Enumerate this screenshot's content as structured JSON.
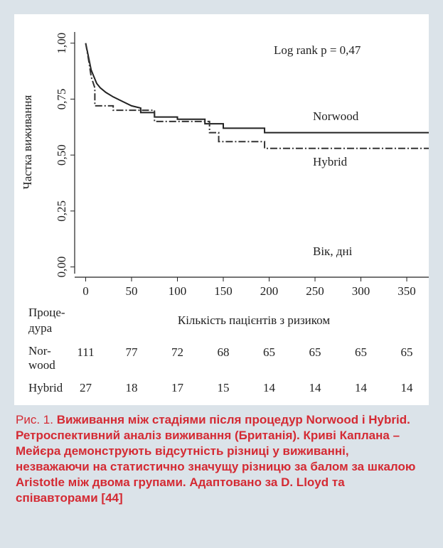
{
  "chart_data": {
    "type": "line",
    "annotation": "Log rank p = 0,47",
    "x_label": "Вік, дні",
    "y_label": "Частка виживання",
    "xlim": [
      -12,
      374
    ],
    "ylim": [
      -0.03,
      1.05
    ],
    "xticks": [
      0,
      50,
      100,
      150,
      200,
      250,
      300,
      350
    ],
    "yticks": [
      {
        "value": 0,
        "label": "0,00"
      },
      {
        "value": 0.25,
        "label": "0,25"
      },
      {
        "value": 0.5,
        "label": "0,50"
      },
      {
        "value": 0.75,
        "label": "0,75"
      },
      {
        "value": 1,
        "label": "1,00"
      }
    ],
    "series": [
      {
        "name": "Norwood",
        "color": "#222222",
        "dash": "none",
        "x": [
          0,
          2,
          4,
          6,
          9,
          12,
          16,
          22,
          30,
          40,
          50,
          60,
          60,
          75,
          75,
          100,
          100,
          130,
          130,
          150,
          150,
          195,
          195,
          374
        ],
        "values": [
          1,
          0.96,
          0.92,
          0.88,
          0.85,
          0.82,
          0.8,
          0.78,
          0.76,
          0.74,
          0.72,
          0.71,
          0.69,
          0.69,
          0.67,
          0.67,
          0.66,
          0.66,
          0.64,
          0.64,
          0.62,
          0.62,
          0.6,
          0.6
        ]
      },
      {
        "name": "Hybrid",
        "color": "#333333",
        "dash": "10 3 2 3",
        "x": [
          0,
          3,
          6,
          10,
          10,
          30,
          30,
          75,
          75,
          135,
          135,
          145,
          145,
          195,
          195,
          374
        ],
        "values": [
          1,
          0.93,
          0.85,
          0.8,
          0.72,
          0.72,
          0.7,
          0.7,
          0.65,
          0.65,
          0.6,
          0.6,
          0.56,
          0.56,
          0.53,
          0.53
        ]
      }
    ],
    "risk_table": {
      "header": [
        "Проце-",
        "дура"
      ],
      "title": "Кількість пацієнтів з ризиком",
      "rows": [
        {
          "label": [
            "Nor-",
            "wood"
          ],
          "values": [
            111,
            77,
            72,
            68,
            65,
            65,
            65,
            65
          ]
        },
        {
          "label": [
            "Hybrid"
          ],
          "values": [
            27,
            18,
            17,
            15,
            14,
            14,
            14,
            14
          ]
        }
      ]
    }
  },
  "caption": {
    "prefix": "Рис. 1.",
    "text": "Виживання між стадіями після процедур Norwood і Hybrid. Ретроспективний аналіз виживання (Британія). Криві Каплана – Мейєра демонструють відсутність різниці у виживанні, незважаючи на статистично значущу різницю за балом за шкалою Aristotle між двома групами. Адаптовано за D. Lloyd та співавторами [44]"
  }
}
